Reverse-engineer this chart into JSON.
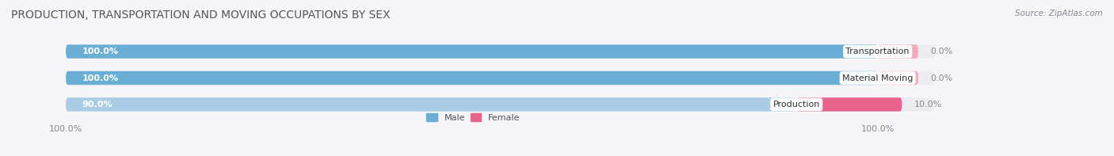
{
  "title": "PRODUCTION, TRANSPORTATION AND MOVING OCCUPATIONS BY SEX",
  "source": "Source: ZipAtlas.com",
  "categories": [
    "Transportation",
    "Material Moving",
    "Production"
  ],
  "male_values": [
    100.0,
    100.0,
    90.0
  ],
  "female_values": [
    0.0,
    0.0,
    10.0
  ],
  "male_color_100": "#6aaed6",
  "male_color_90": "#aacce4",
  "female_color_10": "#e8648c",
  "female_color_0": "#f4a8be",
  "bar_bg_color": "#ebebf0",
  "background_color": "#f5f5f8",
  "title_fontsize": 10,
  "source_fontsize": 7.5,
  "label_fontsize": 8,
  "tick_fontsize": 8,
  "bar_height": 0.52,
  "total_width": 100,
  "female_min_display": 5,
  "xlim_left": -5,
  "xlim_right": 120
}
